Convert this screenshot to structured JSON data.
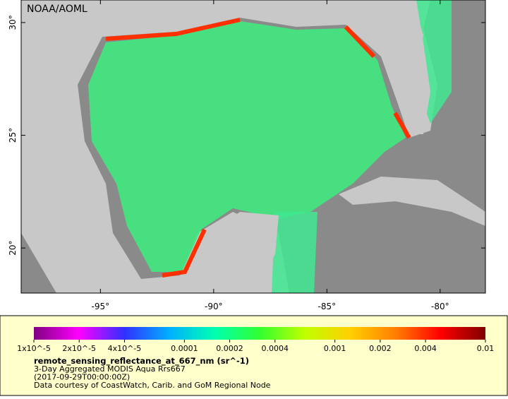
{
  "map": {
    "title": "NOAA/AOML",
    "xlim": [
      -98.5,
      -78
    ],
    "ylim": [
      18,
      31
    ],
    "xticks": [
      {
        "value": -95,
        "label": "-95°"
      },
      {
        "value": -90,
        "label": "-90°"
      },
      {
        "value": -85,
        "label": "-85°"
      },
      {
        "value": -80,
        "label": "-80°"
      }
    ],
    "yticks": [
      {
        "value": 20,
        "label": "20°"
      },
      {
        "value": 25,
        "label": "25°"
      },
      {
        "value": 30,
        "label": "30°"
      }
    ]
  },
  "colorbar": {
    "scale": "log",
    "lim": [
      1e-05,
      0.01
    ],
    "ticks": [
      {
        "value": 1e-05,
        "label": "1x10^-5"
      },
      {
        "value": 2e-05,
        "label": "2x10^-5"
      },
      {
        "value": 4e-05,
        "label": "4x10^-5"
      },
      0.0001,
      0.0002,
      0.0004,
      0.001,
      0.002,
      0.004,
      0.01
    ],
    "colors": [
      "#800080",
      "#ff00ff",
      "#3030ff",
      "#00b0ff",
      "#00ffb0",
      "#30ff30",
      "#c0ff00",
      "#ffd000",
      "#ff8000",
      "#ff0000",
      "#800000"
    ]
  },
  "legend": {
    "variable": "remote_sensing_reflectance_at_667_nm (sr^-1)",
    "lines": [
      "3-Day Aggregated MODIS Aqua Rrs667",
      "(2017-09-29T00:00:00Z)",
      "Data courtesy of CoastWatch, Carib. and GoM Regional Node"
    ]
  }
}
